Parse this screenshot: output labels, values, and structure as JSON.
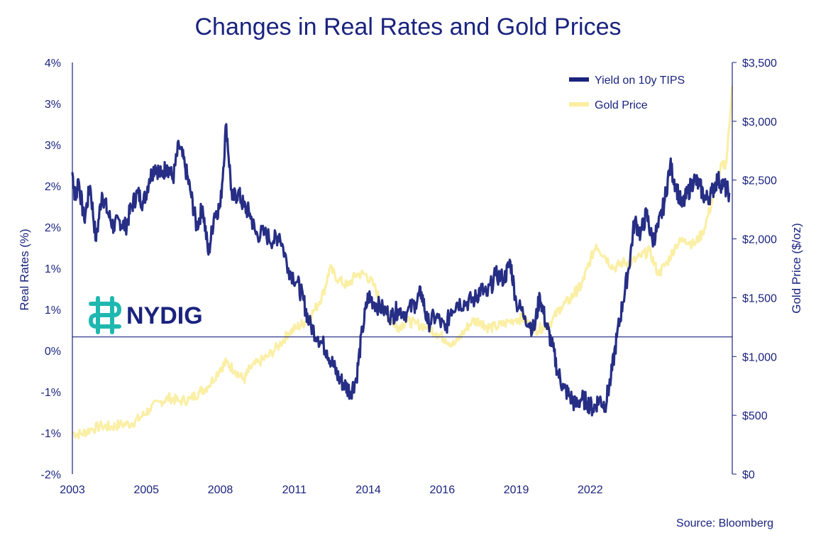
{
  "colors": {
    "rates": "#1a237e",
    "gold": "#fbeea0",
    "axis": "#1a237e",
    "logo_icon": "#1fb8b0"
  },
  "logo": {
    "text": "NYDIG",
    "icon": "nydig-logo-icon"
  },
  "source": "Source: Bloomberg",
  "chart_data": {
    "type": "line",
    "title": "Changes in Real Rates and Gold Prices",
    "ylabel_left": "Real Rates (%)",
    "ylabel_right": "Gold Price ($/oz)",
    "ylim_left": [
      -2,
      4
    ],
    "ylim_right": [
      0,
      3500
    ],
    "yticks_left": [
      "4%",
      "3%",
      "3%",
      "2%",
      "2%",
      "1%",
      "1%",
      "0%",
      "-1%",
      "-1%",
      "-2%"
    ],
    "yticks_right": [
      "$3,500",
      "$3,000",
      "$2,500",
      "$2,000",
      "$1,500",
      "$1,000",
      "$500",
      "$0"
    ],
    "xticks": [
      {
        "label": "2003",
        "x": 2003.0
      },
      {
        "label": "2005",
        "x": 2005.5
      },
      {
        "label": "2008",
        "x": 2008.0
      },
      {
        "label": "2011",
        "x": 2010.5
      },
      {
        "label": "2014",
        "x": 2013.0
      },
      {
        "label": "2016",
        "x": 2015.5
      },
      {
        "label": "2019",
        "x": 2018.0
      },
      {
        "label": "2022",
        "x": 2020.5
      }
    ],
    "xlim": [
      2003.0,
      2025.3
    ],
    "legend": [
      "Yield on 10y TIPS",
      "Gold Price"
    ],
    "series": [
      {
        "name": "Yield on 10y TIPS",
        "x": [
          2003.0,
          2003.1,
          2003.2,
          2003.4,
          2003.6,
          2003.8,
          2004.0,
          2004.2,
          2004.4,
          2004.6,
          2004.8,
          2005.0,
          2005.2,
          2005.4,
          2005.6,
          2005.8,
          2006.0,
          2006.2,
          2006.4,
          2006.6,
          2006.8,
          2007.0,
          2007.2,
          2007.4,
          2007.6,
          2007.8,
          2008.0,
          2008.2,
          2008.4,
          2008.6,
          2008.8,
          2009.0,
          2009.2,
          2009.5,
          2009.8,
          2010.0,
          2010.3,
          2010.6,
          2010.8,
          2011.0,
          2011.3,
          2011.6,
          2011.8,
          2012.0,
          2012.2,
          2012.4,
          2012.6,
          2012.8,
          2013.0,
          2013.2,
          2013.5,
          2013.8,
          2014.0,
          2014.3,
          2014.6,
          2014.8,
          2015.0,
          2015.3,
          2015.6,
          2015.8,
          2016.0,
          2016.3,
          2016.6,
          2016.8,
          2017.0,
          2017.3,
          2017.6,
          2017.8,
          2018.0,
          2018.3,
          2018.6,
          2018.8,
          2019.0,
          2019.2,
          2019.4,
          2019.6,
          2019.8,
          2020.0,
          2020.2,
          2020.4,
          2020.6,
          2020.8,
          2021.0,
          2021.2,
          2021.4,
          2021.6,
          2021.8,
          2022.0,
          2022.2,
          2022.4,
          2022.6,
          2022.8,
          2023.0,
          2023.2,
          2023.4,
          2023.6,
          2023.8,
          2024.0,
          2024.2,
          2024.4,
          2024.6,
          2024.8,
          2025.0,
          2025.2
        ],
        "values": [
          2.4,
          2.0,
          2.3,
          1.7,
          2.2,
          1.4,
          2.1,
          1.8,
          1.6,
          1.7,
          1.6,
          1.9,
          2.1,
          1.95,
          2.3,
          2.5,
          2.35,
          2.5,
          2.3,
          2.8,
          2.5,
          2.1,
          1.6,
          1.9,
          1.2,
          1.8,
          1.9,
          3.1,
          2.0,
          2.1,
          1.9,
          1.8,
          1.5,
          1.5,
          1.4,
          1.5,
          1.0,
          0.8,
          0.55,
          0.2,
          0.0,
          -0.2,
          -0.4,
          -0.6,
          -0.7,
          -0.8,
          -0.6,
          0.1,
          0.6,
          0.5,
          0.4,
          0.3,
          0.4,
          0.35,
          0.5,
          0.65,
          0.2,
          0.3,
          0.1,
          0.4,
          0.5,
          0.5,
          0.55,
          0.7,
          0.6,
          0.9,
          0.85,
          1.1,
          0.5,
          0.3,
          0.1,
          0.6,
          0.2,
          -0.1,
          -0.5,
          -0.75,
          -0.85,
          -1.0,
          -0.9,
          -0.95,
          -1.05,
          -0.9,
          -1.0,
          -0.6,
          0.0,
          0.5,
          1.0,
          1.7,
          1.5,
          1.8,
          1.4,
          1.6,
          1.95,
          2.5,
          2.2,
          1.9,
          2.1,
          2.3,
          2.2,
          2.0,
          2.1,
          2.3,
          2.2,
          2.1
        ]
      },
      {
        "name": "Gold Price",
        "x": [
          2003.0,
          2003.3,
          2003.6,
          2004.0,
          2004.3,
          2004.6,
          2005.0,
          2005.3,
          2005.6,
          2006.0,
          2006.3,
          2006.6,
          2007.0,
          2007.3,
          2007.6,
          2008.0,
          2008.2,
          2008.5,
          2008.8,
          2009.0,
          2009.3,
          2009.6,
          2010.0,
          2010.3,
          2010.6,
          2010.9,
          2011.2,
          2011.5,
          2011.7,
          2012.0,
          2012.3,
          2012.6,
          2012.9,
          2013.2,
          2013.5,
          2013.8,
          2014.0,
          2014.3,
          2014.6,
          2015.0,
          2015.3,
          2015.6,
          2015.9,
          2016.2,
          2016.5,
          2016.8,
          2017.0,
          2017.3,
          2017.6,
          2018.0,
          2018.3,
          2018.6,
          2018.9,
          2019.2,
          2019.5,
          2019.8,
          2020.0,
          2020.2,
          2020.4,
          2020.7,
          2021.0,
          2021.3,
          2021.6,
          2021.9,
          2022.2,
          2022.5,
          2022.8,
          2023.1,
          2023.4,
          2023.7,
          2024.0,
          2024.3,
          2024.6,
          2024.9,
          2025.1,
          2025.3
        ],
        "values": [
          350,
          340,
          380,
          410,
          400,
          420,
          430,
          480,
          550,
          620,
          650,
          620,
          640,
          700,
          750,
          900,
          950,
          880,
          800,
          900,
          950,
          1000,
          1100,
          1200,
          1250,
          1300,
          1400,
          1550,
          1750,
          1650,
          1600,
          1700,
          1700,
          1600,
          1400,
          1300,
          1250,
          1300,
          1280,
          1250,
          1200,
          1150,
          1100,
          1200,
          1300,
          1300,
          1250,
          1250,
          1280,
          1320,
          1320,
          1220,
          1250,
          1300,
          1420,
          1480,
          1550,
          1600,
          1750,
          1950,
          1850,
          1750,
          1800,
          1800,
          1850,
          1900,
          1700,
          1800,
          1950,
          2000,
          1950,
          2050,
          2300,
          2600,
          2650,
          3300
        ]
      }
    ]
  }
}
